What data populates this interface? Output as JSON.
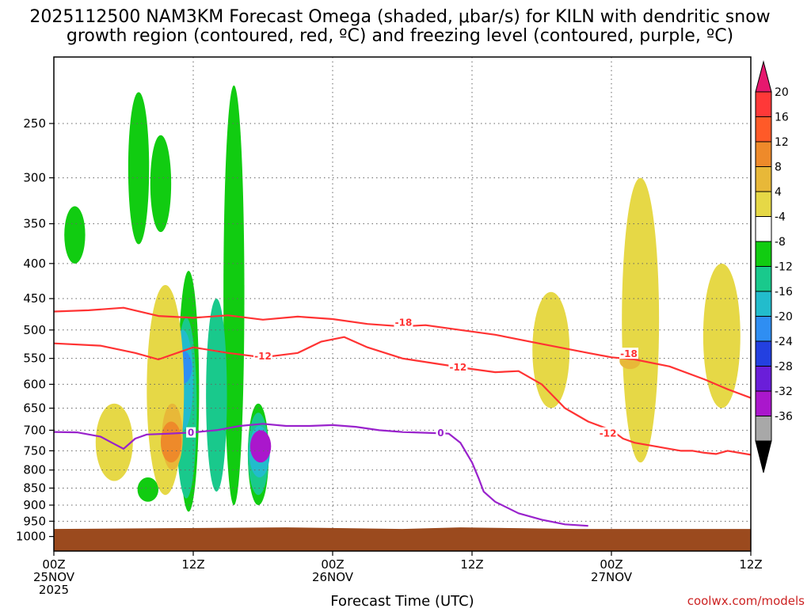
{
  "header": {
    "title_line1": "2025112500 NAM3KM Forecast Omega (shaded, μbar/s) for KILN with dendritic snow",
    "title_line2": "growth region (contoured, red, ºC) and freezing level (contoured, purple, ºC)"
  },
  "footer": {
    "xlabel": "Forecast Time (UTC)",
    "credit": "coolwx.com/models"
  },
  "chart_data": {
    "type": "heatmap",
    "title": "2025112500 NAM3KM Forecast Omega (shaded, μbar/s) for KILN with dendritic snow growth region (contoured, red, ºC) and freezing level (contoured, purple, ºC)",
    "xlabel": "Forecast Time (UTC)",
    "ylabel": "",
    "x_range_hours": [
      0,
      60
    ],
    "y_range_hPa": [
      1050,
      200
    ],
    "x_ticks": [
      {
        "hour": 0,
        "label1": "00Z",
        "label2": "25NOV",
        "label3": "2025"
      },
      {
        "hour": 12,
        "label1": "12Z",
        "label2": "",
        "label3": ""
      },
      {
        "hour": 24,
        "label1": "00Z",
        "label2": "26NOV",
        "label3": ""
      },
      {
        "hour": 36,
        "label1": "12Z",
        "label2": "",
        "label3": ""
      },
      {
        "hour": 48,
        "label1": "00Z",
        "label2": "27NOV",
        "label3": ""
      },
      {
        "hour": 60,
        "label1": "12Z",
        "label2": "",
        "label3": ""
      }
    ],
    "y_ticks": [
      250,
      300,
      350,
      400,
      450,
      500,
      550,
      600,
      650,
      700,
      750,
      800,
      850,
      900,
      950,
      1000
    ],
    "grid": true,
    "colorbar": {
      "labels": [
        "20",
        "16",
        "12",
        "8",
        "4",
        "-4",
        "-8",
        "-12",
        "-16",
        "-20",
        "-24",
        "-28",
        "-32",
        "-36"
      ],
      "colors": [
        "#ff3838",
        "#ff5a28",
        "#ee8a2a",
        "#e8b838",
        "#e6d846",
        "#ffffff",
        "#11cc11",
        "#19c98c",
        "#22bccc",
        "#2f8ef2",
        "#2340e0",
        "#6a1ed9",
        "#aa17cc",
        "#a8a8a8"
      ],
      "top_color": "#e6186e",
      "bottom_color": "#000000"
    },
    "omega_regions": [
      {
        "level": "-8",
        "color": "#11cc11",
        "hour": 7.3,
        "p_top": 225,
        "p_bot": 375
      },
      {
        "level": "-8",
        "color": "#11cc11",
        "hour": 9.2,
        "p_top": 260,
        "p_bot": 360
      },
      {
        "level": "-8",
        "color": "#11cc11",
        "hour": 1.8,
        "p_top": 330,
        "p_bot": 400
      },
      {
        "level": "-8",
        "color": "#11cc11",
        "hour": 15.5,
        "p_top": 220,
        "p_bot": 900
      },
      {
        "level": "-8",
        "color": "#11cc11",
        "hour": 11.6,
        "p_top": 410,
        "p_bot": 920
      },
      {
        "level": "-8",
        "color": "#11cc11",
        "hour": 17.6,
        "p_top": 640,
        "p_bot": 900
      },
      {
        "level": "-8",
        "color": "#11cc11",
        "hour": 8.1,
        "p_top": 820,
        "p_bot": 890
      },
      {
        "level": "-12",
        "color": "#19c98c",
        "hour": 11.4,
        "p_top": 480,
        "p_bot": 880
      },
      {
        "level": "-12",
        "color": "#19c98c",
        "hour": 14.0,
        "p_top": 450,
        "p_bot": 860
      },
      {
        "level": "-12",
        "color": "#19c98c",
        "hour": 17.6,
        "p_top": 660,
        "p_bot": 870
      },
      {
        "level": "-16",
        "color": "#22bccc",
        "hour": 11.1,
        "p_top": 500,
        "p_bot": 700
      },
      {
        "level": "-16",
        "color": "#22bccc",
        "hour": 17.7,
        "p_top": 690,
        "p_bot": 820
      },
      {
        "level": "-20",
        "color": "#2f8ef2",
        "hour": 11.0,
        "p_top": 535,
        "p_bot": 600
      },
      {
        "level": "-28",
        "color": "#aa17cc",
        "hour": 17.8,
        "p_top": 700,
        "p_bot": 780
      },
      {
        "level": "4",
        "color": "#e6d846",
        "hour": 9.6,
        "p_top": 430,
        "p_bot": 870
      },
      {
        "level": "4",
        "color": "#e6d846",
        "hour": 5.2,
        "p_top": 640,
        "p_bot": 830
      },
      {
        "level": "4",
        "color": "#e6d846",
        "hour": 42.8,
        "p_top": 440,
        "p_bot": 650
      },
      {
        "level": "4",
        "color": "#e6d846",
        "hour": 50.5,
        "p_top": 300,
        "p_bot": 780
      },
      {
        "level": "4",
        "color": "#e6d846",
        "hour": 57.5,
        "p_top": 400,
        "p_bot": 650
      },
      {
        "level": "8",
        "color": "#e8b838",
        "hour": 10.2,
        "p_top": 640,
        "p_bot": 800
      },
      {
        "level": "12",
        "color": "#ee8a2a",
        "hour": 10.1,
        "p_top": 680,
        "p_bot": 780
      },
      {
        "level": "8",
        "color": "#e8b838",
        "hour": 49.6,
        "p_top": 540,
        "p_bot": 570
      }
    ],
    "dgz_contours": [
      {
        "label": "-18",
        "color": "#ff3333",
        "points": [
          [
            0,
            470
          ],
          [
            3,
            468
          ],
          [
            6,
            464
          ],
          [
            9,
            477
          ],
          [
            12,
            480
          ],
          [
            15,
            476
          ],
          [
            18,
            483
          ],
          [
            21,
            478
          ],
          [
            24,
            482
          ],
          [
            27,
            490
          ],
          [
            30,
            494
          ],
          [
            32,
            492
          ],
          [
            35,
            500
          ],
          [
            38,
            508
          ],
          [
            42,
            524
          ],
          [
            46,
            540
          ],
          [
            48,
            548
          ],
          [
            50,
            552
          ],
          [
            53,
            565
          ],
          [
            56,
            590
          ],
          [
            58,
            610
          ],
          [
            60,
            628
          ]
        ]
      },
      {
        "label": "-12",
        "color": "#ff3333",
        "points": [
          [
            0,
            523
          ],
          [
            4,
            527
          ],
          [
            7,
            540
          ],
          [
            9,
            552
          ],
          [
            12,
            530
          ],
          [
            15,
            540
          ],
          [
            18,
            548
          ],
          [
            21,
            540
          ],
          [
            23,
            520
          ],
          [
            25,
            512
          ],
          [
            27,
            530
          ],
          [
            30,
            550
          ],
          [
            33,
            560
          ],
          [
            36,
            570
          ],
          [
            38,
            576
          ],
          [
            40,
            574
          ],
          [
            42,
            600
          ],
          [
            44,
            650
          ],
          [
            46,
            680
          ],
          [
            48,
            700
          ],
          [
            49,
            720
          ],
          [
            50,
            730
          ],
          [
            52,
            740
          ],
          [
            53,
            745
          ],
          [
            54,
            750
          ],
          [
            55,
            750
          ],
          [
            56,
            755
          ],
          [
            57,
            758
          ],
          [
            58,
            750
          ],
          [
            60,
            760
          ]
        ]
      }
    ],
    "dgz_label_positions": [
      {
        "label": "-18",
        "hour": 30.1,
        "p": 488
      },
      {
        "label": "-12",
        "hour": 18.0,
        "p": 546
      },
      {
        "label": "-12",
        "hour": 34.8,
        "p": 567
      },
      {
        "label": "-18",
        "hour": 49.5,
        "p": 542
      },
      {
        "label": "-12",
        "hour": 47.7,
        "p": 708
      }
    ],
    "freezing_level": {
      "label": "0",
      "color": "#9922cc",
      "points": [
        [
          0,
          704
        ],
        [
          2,
          705
        ],
        [
          4,
          715
        ],
        [
          5,
          730
        ],
        [
          6,
          745
        ],
        [
          7,
          720
        ],
        [
          8,
          710
        ],
        [
          10,
          708
        ],
        [
          12,
          705
        ],
        [
          14,
          700
        ],
        [
          16,
          690
        ],
        [
          18,
          685
        ],
        [
          20,
          690
        ],
        [
          22,
          690
        ],
        [
          24,
          688
        ],
        [
          26,
          692
        ],
        [
          28,
          700
        ],
        [
          30,
          704
        ],
        [
          32,
          706
        ],
        [
          34,
          708
        ],
        [
          35,
          730
        ],
        [
          36,
          780
        ],
        [
          36.6,
          825
        ],
        [
          37,
          860
        ],
        [
          38,
          890
        ],
        [
          40,
          925
        ],
        [
          42,
          945
        ],
        [
          44,
          960
        ],
        [
          46,
          965
        ]
      ]
    },
    "freezing_label_positions": [
      {
        "label": "0",
        "hour": 11.8,
        "p": 706
      },
      {
        "label": "0",
        "hour": 33.3,
        "p": 707
      }
    ],
    "ground_color": "#9b4a1e"
  }
}
